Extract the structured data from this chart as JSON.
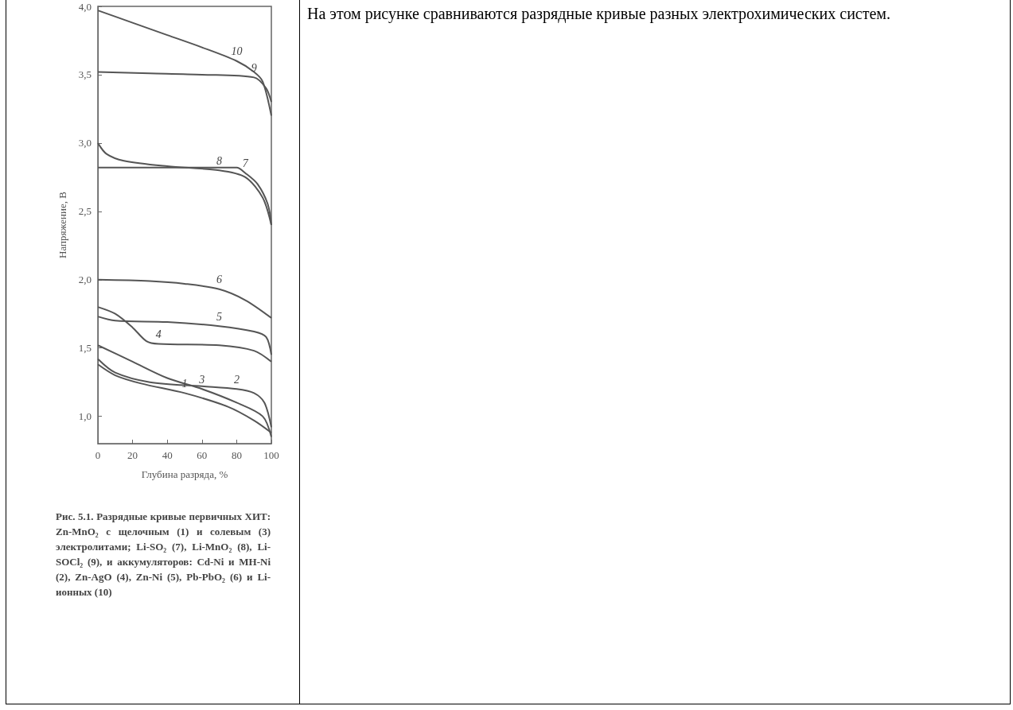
{
  "chart_data": {
    "type": "line",
    "xlabel": "Глубина разряда, %",
    "ylabel": "Напряжение, В",
    "xlim": [
      0,
      100
    ],
    "xticks": [
      0,
      20,
      40,
      60,
      80,
      100
    ],
    "ylim": [
      0.8,
      4.0
    ],
    "yticks": [
      {
        "value": 1.0,
        "label": "1,0"
      },
      {
        "value": 1.5,
        "label": "1,5"
      },
      {
        "value": 2.0,
        "label": "2,0"
      },
      {
        "value": 2.5,
        "label": "2,5"
      },
      {
        "value": 3.0,
        "label": "3,0"
      },
      {
        "value": 3.5,
        "label": "3,5"
      },
      {
        "value": 4.0,
        "label": "4,0"
      }
    ],
    "grid": false,
    "legend": false,
    "marker": "none",
    "line_style": "solid",
    "series": [
      {
        "name": "1",
        "color": "#555555",
        "x": [
          0,
          10,
          25,
          50,
          75,
          90,
          100
        ],
        "values": [
          1.38,
          1.3,
          1.24,
          1.17,
          1.07,
          0.97,
          0.88
        ]
      },
      {
        "name": "2",
        "color": "#555555",
        "x": [
          0,
          10,
          30,
          60,
          80,
          90,
          96,
          100
        ],
        "values": [
          1.42,
          1.32,
          1.25,
          1.22,
          1.2,
          1.17,
          1.1,
          0.92
        ]
      },
      {
        "name": "3",
        "color": "#555555",
        "x": [
          0,
          20,
          40,
          60,
          80,
          95,
          100
        ],
        "values": [
          1.52,
          1.4,
          1.28,
          1.2,
          1.1,
          1.0,
          0.85
        ]
      },
      {
        "name": "4",
        "color": "#555555",
        "x": [
          0,
          10,
          20,
          28,
          35,
          70,
          90,
          100
        ],
        "values": [
          1.8,
          1.75,
          1.65,
          1.55,
          1.53,
          1.52,
          1.48,
          1.4
        ]
      },
      {
        "name": "5",
        "color": "#555555",
        "x": [
          0,
          10,
          40,
          70,
          90,
          97,
          100
        ],
        "values": [
          1.73,
          1.7,
          1.69,
          1.66,
          1.62,
          1.58,
          1.45
        ]
      },
      {
        "name": "6",
        "color": "#555555",
        "x": [
          0,
          30,
          50,
          70,
          85,
          100
        ],
        "values": [
          2.0,
          1.99,
          1.97,
          1.93,
          1.85,
          1.72
        ]
      },
      {
        "name": "7",
        "color": "#555555",
        "x": [
          0,
          40,
          80,
          85,
          92,
          98,
          100
        ],
        "values": [
          2.82,
          2.82,
          2.82,
          2.78,
          2.7,
          2.55,
          2.4
        ]
      },
      {
        "name": "8",
        "color": "#555555",
        "x": [
          0,
          5,
          15,
          40,
          70,
          85,
          95,
          100
        ],
        "values": [
          3.0,
          2.92,
          2.87,
          2.83,
          2.8,
          2.75,
          2.6,
          2.4
        ]
      },
      {
        "name": "9",
        "color": "#555555",
        "x": [
          0,
          30,
          60,
          90,
          97,
          100
        ],
        "values": [
          3.52,
          3.51,
          3.5,
          3.48,
          3.4,
          3.3
        ]
      },
      {
        "name": "10",
        "color": "#555555",
        "x": [
          0,
          20,
          40,
          60,
          80,
          90,
          95,
          100
        ],
        "values": [
          3.97,
          3.88,
          3.79,
          3.7,
          3.6,
          3.52,
          3.45,
          3.2
        ]
      }
    ],
    "annotations": [
      "Рис. 5.1. Разрядные кривые первичных ХИТ: Zn-MnO₂ с щелочным (1) и солевым (3) электролитами; Li-SO₂ (7), Li-MnO₂ (8), Li-SOCl₂ (9), и аккумуляторов: Cd-Ni и MH-Ni (2), Zn-AgO (4), Zn-Ni (5), Pb-PbO₂ (6) и Li-ионных (10)",
      "На этом рисунке сравниваются разрядные кривые разных электрохимических систем."
    ]
  }
}
